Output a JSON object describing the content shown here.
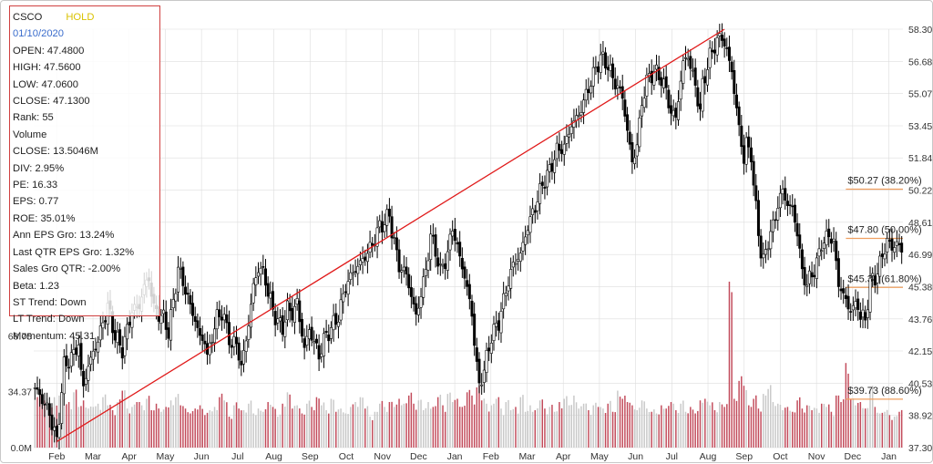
{
  "info_panel": {
    "symbol": "CSCO",
    "rating": "HOLD",
    "date": "01/10/2020",
    "rows": [
      "OPEN: 47.4800",
      "HIGH: 47.5600",
      "LOW: 47.0600",
      "CLOSE: 47.1300",
      "Rank: 55",
      "Volume",
      "CLOSE: 13.5046M",
      "DIV: 2.95%",
      "PE: 16.33",
      "EPS: 0.77",
      "ROE: 35.01%",
      "Ann EPS Gro: 13.24%",
      "Last QTR EPS Gro: 1.32%",
      "Sales Gro QTR: -2.00%",
      "Beta: 1.23",
      "ST Trend: Down",
      "LT Trend: Down",
      "Momentum: 45.31"
    ]
  },
  "chart_data": {
    "type": "candlestick",
    "x_axis_labels": [
      "Feb",
      "Mar",
      "Apr",
      "May",
      "Jun",
      "Jul",
      "Aug",
      "Sep",
      "Oct",
      "Nov",
      "Dec",
      "Jan",
      "Feb",
      "Mar",
      "Apr",
      "May",
      "Jun",
      "Jul",
      "Aug",
      "Sep",
      "Oct",
      "Nov",
      "Dec",
      "Jan"
    ],
    "price_axis_ticks": [
      "58.30",
      "56.68",
      "55.07",
      "53.45",
      "51.84",
      "50.22",
      "48.61",
      "46.99",
      "45.38",
      "43.76",
      "42.15",
      "40.53",
      "38.92",
      "37.30"
    ],
    "price_range": [
      37.3,
      58.3
    ],
    "volume_axis_ticks": [
      "68.75",
      "34.37",
      "0.0M"
    ],
    "volume_range_millions": [
      0,
      103.1
    ],
    "price_path": [
      [
        0,
        40.3
      ],
      [
        3,
        39.7
      ],
      [
        6,
        39.0
      ],
      [
        9,
        37.6
      ],
      [
        12,
        41.4
      ],
      [
        15,
        41.8
      ],
      [
        18,
        42.5
      ],
      [
        19,
        41.0
      ],
      [
        20,
        40.4
      ],
      [
        22,
        41.4
      ],
      [
        26,
        42.7
      ],
      [
        30,
        44.4
      ],
      [
        33,
        42.9
      ],
      [
        36,
        42.2
      ],
      [
        40,
        44.2
      ],
      [
        43,
        44.4
      ],
      [
        45,
        45.4
      ],
      [
        47,
        45.8
      ],
      [
        49,
        44.3
      ],
      [
        51,
        44.0
      ],
      [
        53,
        43.8
      ],
      [
        55,
        43.1
      ],
      [
        57,
        44.6
      ],
      [
        59,
        46.3
      ],
      [
        61,
        45.6
      ],
      [
        64,
        44.4
      ],
      [
        66,
        43.7
      ],
      [
        68,
        42.8
      ],
      [
        70,
        42.7
      ],
      [
        71,
        41.8
      ],
      [
        73,
        42.9
      ],
      [
        75,
        43.8
      ],
      [
        77,
        44.1
      ],
      [
        79,
        43.3
      ],
      [
        81,
        42.4
      ],
      [
        83,
        42.6
      ],
      [
        85,
        41.3
      ],
      [
        88,
        43.5
      ],
      [
        90,
        45.4
      ],
      [
        92,
        46.3
      ],
      [
        94,
        46.1
      ],
      [
        95,
        45.7
      ],
      [
        96,
        45.1
      ],
      [
        98,
        44.2
      ],
      [
        100,
        43.6
      ],
      [
        102,
        43.3
      ],
      [
        104,
        44.3
      ],
      [
        106,
        44.0
      ],
      [
        108,
        44.6
      ],
      [
        109,
        43.7
      ],
      [
        111,
        42.3
      ],
      [
        113,
        43.2
      ],
      [
        115,
        42.6
      ],
      [
        117,
        41.9
      ],
      [
        119,
        42.7
      ],
      [
        122,
        43.3
      ],
      [
        125,
        43.9
      ],
      [
        126,
        44.4
      ],
      [
        128,
        45.4
      ],
      [
        131,
        46.1
      ],
      [
        133,
        46.4
      ],
      [
        136,
        46.9
      ],
      [
        139,
        47.5
      ],
      [
        142,
        48.4
      ],
      [
        144,
        48.6
      ],
      [
        146,
        49.0
      ],
      [
        147,
        48.2
      ],
      [
        148,
        47.6
      ],
      [
        150,
        46.4
      ],
      [
        153,
        46.0
      ],
      [
        155,
        44.9
      ],
      [
        157,
        43.9
      ],
      [
        159,
        45.0
      ],
      [
        161,
        46.2
      ],
      [
        163,
        47.9
      ],
      [
        165,
        47.2
      ],
      [
        167,
        46.1
      ],
      [
        170,
        47.0
      ],
      [
        172,
        48.4
      ],
      [
        174,
        47.3
      ],
      [
        176,
        46.4
      ],
      [
        178,
        45.3
      ],
      [
        180,
        44.0
      ],
      [
        181,
        42.6
      ],
      [
        182,
        41.4
      ],
      [
        183,
        40.4
      ],
      [
        185,
        41.2
      ],
      [
        188,
        42.9
      ],
      [
        191,
        43.6
      ],
      [
        194,
        45.2
      ],
      [
        197,
        46.5
      ],
      [
        200,
        47.0
      ],
      [
        203,
        48.4
      ],
      [
        206,
        49.4
      ],
      [
        209,
        50.5
      ],
      [
        212,
        51.2
      ],
      [
        215,
        52.2
      ],
      [
        218,
        52.4
      ],
      [
        221,
        53.5
      ],
      [
        224,
        54.0
      ],
      [
        227,
        55.0
      ],
      [
        230,
        56.0
      ],
      [
        233,
        56.9
      ],
      [
        236,
        56.5
      ],
      [
        238,
        55.8
      ],
      [
        240,
        55.4
      ],
      [
        242,
        54.9
      ],
      [
        244,
        53.2
      ],
      [
        246,
        51.6
      ],
      [
        248,
        52.5
      ],
      [
        250,
        54.6
      ],
      [
        252,
        55.7
      ],
      [
        255,
        56.2
      ],
      [
        258,
        55.8
      ],
      [
        260,
        55.2
      ],
      [
        262,
        54.1
      ],
      [
        264,
        53.9
      ],
      [
        265,
        54.8
      ],
      [
        267,
        56.6
      ],
      [
        269,
        57.0
      ],
      [
        270,
        56.4
      ],
      [
        272,
        55.5
      ],
      [
        274,
        54.1
      ],
      [
        275,
        55.5
      ],
      [
        278,
        56.9
      ],
      [
        280,
        57.5
      ],
      [
        283,
        58.0
      ],
      [
        285,
        57.1
      ],
      [
        287,
        56.3
      ],
      [
        288,
        55.1
      ],
      [
        290,
        53.4
      ],
      [
        292,
        51.7
      ],
      [
        293,
        52.6
      ],
      [
        295,
        52.0
      ],
      [
        296,
        50.4
      ],
      [
        297,
        49.3
      ],
      [
        299,
        47.1
      ],
      [
        300,
        46.6
      ],
      [
        302,
        47.7
      ],
      [
        304,
        48.4
      ],
      [
        306,
        49.5
      ],
      [
        308,
        50.2
      ],
      [
        310,
        49.5
      ],
      [
        312,
        49.3
      ],
      [
        314,
        48.1
      ],
      [
        316,
        46.1
      ],
      [
        318,
        45.5
      ],
      [
        320,
        46.0
      ],
      [
        322,
        46.5
      ],
      [
        324,
        47.6
      ],
      [
        325,
        47.6
      ],
      [
        327,
        48.0
      ],
      [
        329,
        47.6
      ],
      [
        331,
        45.5
      ],
      [
        333,
        45.0
      ],
      [
        335,
        44.3
      ],
      [
        337,
        44.3
      ],
      [
        339,
        44.5
      ],
      [
        340,
        43.9
      ],
      [
        342,
        43.7
      ],
      [
        344,
        45.6
      ],
      [
        346,
        45.8
      ],
      [
        349,
        46.9
      ],
      [
        351,
        47.7
      ],
      [
        353,
        47.3
      ],
      [
        355,
        47.6
      ],
      [
        357,
        47.1
      ]
    ],
    "volume_bars_millions": [
      [
        0,
        30
      ],
      [
        2,
        32
      ],
      [
        4,
        29
      ],
      [
        6,
        24
      ],
      [
        8,
        31
      ],
      [
        10,
        32
      ],
      [
        12,
        26
      ],
      [
        14,
        28
      ],
      [
        16,
        34
      ],
      [
        18,
        25
      ],
      [
        20,
        29
      ],
      [
        22,
        24
      ],
      [
        24,
        25
      ],
      [
        26,
        27
      ],
      [
        28,
        31
      ],
      [
        30,
        26
      ],
      [
        32,
        23
      ],
      [
        34,
        28
      ],
      [
        36,
        35
      ],
      [
        38,
        24
      ],
      [
        40,
        25
      ],
      [
        42,
        28
      ],
      [
        44,
        26
      ],
      [
        46,
        30
      ],
      [
        48,
        23
      ],
      [
        50,
        27
      ],
      [
        52,
        22
      ],
      [
        54,
        25
      ],
      [
        56,
        29
      ],
      [
        58,
        31
      ],
      [
        60,
        26
      ],
      [
        62,
        24
      ],
      [
        64,
        21
      ],
      [
        66,
        24
      ],
      [
        68,
        26
      ],
      [
        70,
        20
      ],
      [
        72,
        23
      ],
      [
        74,
        25
      ],
      [
        76,
        31
      ],
      [
        78,
        29
      ],
      [
        80,
        19
      ],
      [
        82,
        26
      ],
      [
        84,
        24
      ],
      [
        86,
        23
      ],
      [
        88,
        27
      ],
      [
        90,
        21
      ],
      [
        92,
        24
      ],
      [
        94,
        22
      ],
      [
        96,
        28
      ],
      [
        98,
        25
      ],
      [
        100,
        19
      ],
      [
        102,
        27
      ],
      [
        104,
        34
      ],
      [
        106,
        24
      ],
      [
        108,
        26
      ],
      [
        110,
        21
      ],
      [
        112,
        27
      ],
      [
        114,
        25
      ],
      [
        116,
        31
      ],
      [
        118,
        26
      ],
      [
        120,
        23
      ],
      [
        122,
        30
      ],
      [
        124,
        22
      ],
      [
        126,
        24
      ],
      [
        128,
        21
      ],
      [
        130,
        25
      ],
      [
        132,
        28
      ],
      [
        134,
        31
      ],
      [
        136,
        24
      ],
      [
        138,
        19
      ],
      [
        140,
        22
      ],
      [
        142,
        27
      ],
      [
        144,
        25
      ],
      [
        146,
        28
      ],
      [
        148,
        25
      ],
      [
        150,
        30
      ],
      [
        152,
        27
      ],
      [
        154,
        32
      ],
      [
        156,
        27
      ],
      [
        158,
        29
      ],
      [
        160,
        23
      ],
      [
        162,
        28
      ],
      [
        164,
        25
      ],
      [
        166,
        31
      ],
      [
        168,
        26
      ],
      [
        170,
        33
      ],
      [
        172,
        28
      ],
      [
        174,
        30
      ],
      [
        176,
        25
      ],
      [
        178,
        34
      ],
      [
        180,
        32
      ],
      [
        182,
        37
      ],
      [
        184,
        29
      ],
      [
        186,
        27
      ],
      [
        188,
        26
      ],
      [
        190,
        30
      ],
      [
        192,
        24
      ],
      [
        194,
        28
      ],
      [
        196,
        23
      ],
      [
        198,
        25
      ],
      [
        200,
        31
      ],
      [
        202,
        22
      ],
      [
        204,
        26
      ],
      [
        206,
        23
      ],
      [
        208,
        29
      ],
      [
        210,
        24
      ],
      [
        212,
        25
      ],
      [
        214,
        22
      ],
      [
        216,
        28
      ],
      [
        218,
        30
      ],
      [
        220,
        26
      ],
      [
        222,
        32
      ],
      [
        224,
        24
      ],
      [
        226,
        27
      ],
      [
        228,
        23
      ],
      [
        230,
        26
      ],
      [
        232,
        25
      ],
      [
        234,
        24
      ],
      [
        236,
        27
      ],
      [
        238,
        22
      ],
      [
        240,
        35
      ],
      [
        242,
        30
      ],
      [
        244,
        28
      ],
      [
        246,
        26
      ],
      [
        248,
        23
      ],
      [
        250,
        29
      ],
      [
        252,
        24
      ],
      [
        254,
        22
      ],
      [
        256,
        21
      ],
      [
        258,
        26
      ],
      [
        260,
        24
      ],
      [
        262,
        28
      ],
      [
        264,
        23
      ],
      [
        266,
        27
      ],
      [
        268,
        22
      ],
      [
        270,
        25
      ],
      [
        272,
        21
      ],
      [
        274,
        29
      ],
      [
        276,
        30
      ],
      [
        278,
        26
      ],
      [
        280,
        23
      ],
      [
        282,
        28
      ],
      [
        284,
        25
      ],
      [
        286,
        102
      ],
      [
        288,
        30
      ],
      [
        290,
        41
      ],
      [
        292,
        38
      ],
      [
        294,
        26
      ],
      [
        296,
        30
      ],
      [
        298,
        24
      ],
      [
        300,
        33
      ],
      [
        302,
        36
      ],
      [
        304,
        28
      ],
      [
        306,
        27
      ],
      [
        308,
        23
      ],
      [
        310,
        25
      ],
      [
        312,
        22
      ],
      [
        314,
        29
      ],
      [
        316,
        24
      ],
      [
        318,
        26
      ],
      [
        320,
        23
      ],
      [
        322,
        24
      ],
      [
        324,
        27
      ],
      [
        326,
        25
      ],
      [
        328,
        22
      ],
      [
        330,
        32
      ],
      [
        332,
        28
      ],
      [
        334,
        52
      ],
      [
        336,
        30
      ],
      [
        338,
        26
      ],
      [
        340,
        28
      ],
      [
        342,
        24
      ],
      [
        344,
        36
      ],
      [
        346,
        25
      ],
      [
        348,
        21
      ],
      [
        350,
        22
      ],
      [
        352,
        20
      ],
      [
        354,
        19
      ],
      [
        356,
        22
      ]
    ],
    "trendline": {
      "start": [
        9,
        37.6
      ],
      "end": [
        284,
        58.3
      ]
    },
    "fib_levels": [
      {
        "label": "$50.27 (38.20%)",
        "price": 50.27
      },
      {
        "label": "$47.80 (50.00%)",
        "price": 47.8
      },
      {
        "label": "$45.34 (61.80%)",
        "price": 45.34
      },
      {
        "label": "$39.73 (88.60%)",
        "price": 39.73
      }
    ],
    "fib_start_index": 334,
    "colors": {
      "up": "#333333",
      "down": "#000000",
      "volume_up": "#c24a5a",
      "volume_down": "#c8c8c8",
      "trendline": "#e01a1a",
      "fib": "#f0a060",
      "grid": "#dddddd"
    }
  }
}
